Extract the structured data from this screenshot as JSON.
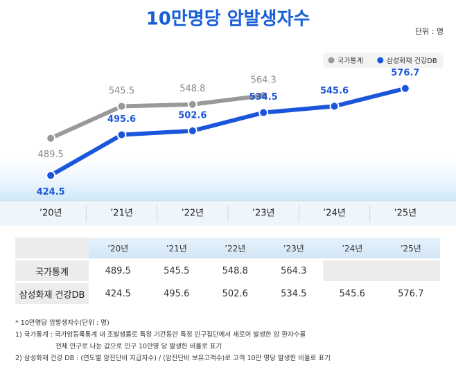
{
  "chart_data": {
    "type": "line",
    "title": "10만명당 암발생자수",
    "unit": "단위 : 명",
    "categories": [
      "’20년",
      "’21년",
      "’22년",
      "’23년",
      "’24년",
      "’25년"
    ],
    "series": [
      {
        "name": "국가통계",
        "color": "#999999",
        "values": [
          489.5,
          545.5,
          548.8,
          564.3,
          null,
          null
        ]
      },
      {
        "name": "삼성화재 건강DB",
        "color": "#1a56db",
        "values": [
          424.5,
          495.6,
          502.6,
          534.5,
          545.6,
          576.7
        ]
      }
    ],
    "ylim": [
      380,
      620
    ],
    "legend": "top-right",
    "grid": false
  },
  "notes": [
    "* 10만명당 암발생자수(단위 : 명)",
    "1) 국가통계 : 국가암등록통계 내 조발생률로 특정 기간동안 특정 인구집단에서 새로이 발생한 암 환자수를",
    "전체 인구로 나눈 값으로 인구 10만명 당 발생한 비율로 표기",
    "2) 삼성화재 건강 DB : (연도별 암진단비 지급자수) / (암진단비 보유고객수)로 고객 10만 명당 발생한 비율로 표기"
  ]
}
